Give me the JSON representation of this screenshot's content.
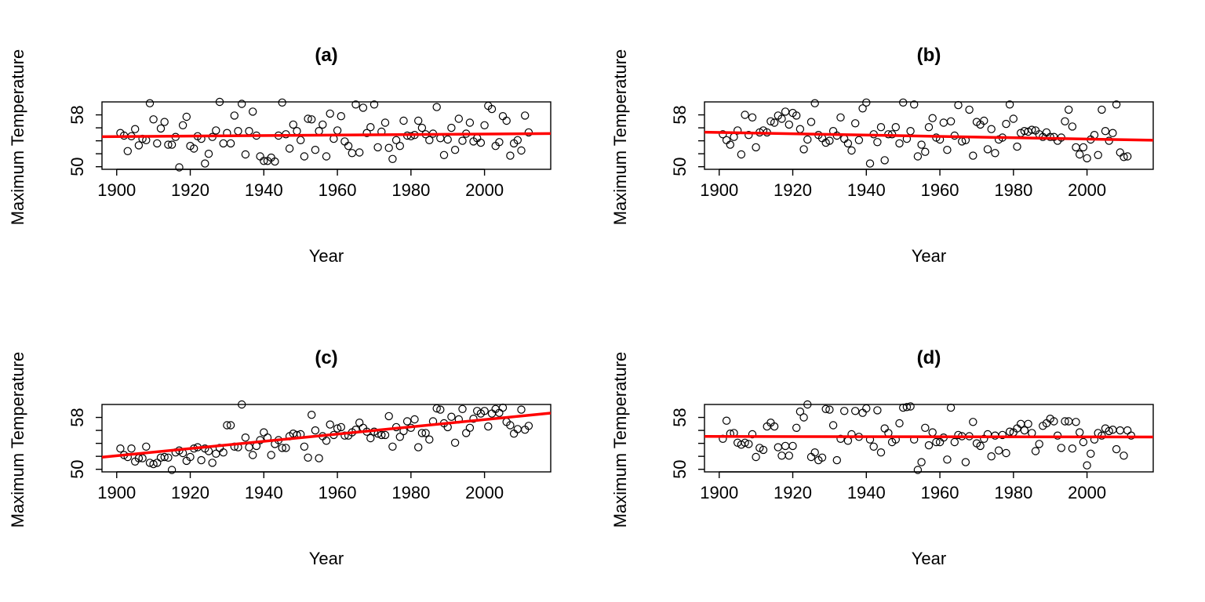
{
  "figure": {
    "background": "#ffffff"
  },
  "style": {
    "point_color": "#000000",
    "trend_color": "#ff0000",
    "axis_color": "#000000"
  },
  "chart_data": [
    {
      "type": "scatter",
      "title": "(a)",
      "xlabel": "Year",
      "ylabel": "Maximum Temperature",
      "xlim": [
        1896,
        2018
      ],
      "ylim": [
        49.6,
        60.0
      ],
      "xticks": [
        1900,
        1920,
        1940,
        1960,
        1980,
        2000
      ],
      "yticks": [
        50,
        58
      ],
      "ytick_labels": [
        "50",
        "58"
      ],
      "years_start": 1901,
      "y": [
        55.2,
        54.8,
        52.4,
        54.7,
        55.8,
        53.3,
        54.3,
        54.1,
        59.8,
        57.3,
        53.6,
        55.9,
        56.9,
        53.4,
        53.4,
        54.6,
        49.9,
        56.4,
        57.7,
        53.2,
        52.8,
        54.7,
        54.3,
        50.5,
        52.0,
        54.6,
        55.6,
        60.0,
        53.6,
        55.2,
        53.6,
        57.9,
        55.5,
        59.7,
        51.9,
        55.5,
        58.5,
        54.8,
        51.6,
        50.9,
        50.9,
        51.4,
        50.8,
        54.8,
        59.9,
        55.0,
        52.8,
        56.5,
        55.5,
        54.1,
        51.6,
        57.4,
        57.3,
        52.6,
        55.5,
        56.5,
        51.6,
        58.2,
        54.3,
        55.6,
        57.8,
        53.9,
        53.2,
        52.1,
        59.6,
        52.2,
        59.1,
        55.2,
        56.1,
        59.6,
        53.0,
        55.4,
        56.8,
        52.9,
        51.2,
        54.1,
        53.2,
        57.1,
        54.8,
        54.7,
        54.9,
        57.1,
        56.0,
        55.0,
        54.1,
        55.1,
        59.2,
        54.4,
        51.8,
        54.2,
        56.0,
        52.6,
        57.4,
        54.0,
        55.1,
        56.8,
        53.9,
        54.4,
        53.7,
        56.4,
        59.4,
        58.9,
        53.2,
        53.8,
        57.8,
        57.1,
        51.7,
        53.6,
        54.1,
        52.5,
        57.9,
        55.3
      ],
      "trend": [
        54.65,
        55.09
      ]
    },
    {
      "type": "scatter",
      "title": "(b)",
      "xlabel": "Year",
      "ylabel": "Maximum Temperature",
      "xlim": [
        1896,
        2018
      ],
      "ylim": [
        49.6,
        60.0
      ],
      "xticks": [
        1900,
        1920,
        1940,
        1960,
        1980,
        2000
      ],
      "yticks": [
        50,
        58
      ],
      "ytick_labels": [
        "50",
        "58"
      ],
      "years_start": 1901,
      "y": [
        55.0,
        54.1,
        53.4,
        54.6,
        55.6,
        51.9,
        58.0,
        54.9,
        57.6,
        53.0,
        55.3,
        55.6,
        55.3,
        57.0,
        56.8,
        57.9,
        57.4,
        58.5,
        56.5,
        58.3,
        57.9,
        55.8,
        52.7,
        54.2,
        56.9,
        59.8,
        54.9,
        54.4,
        53.7,
        54.0,
        55.5,
        54.8,
        57.6,
        54.3,
        53.6,
        52.5,
        56.7,
        54.1,
        59.0,
        59.9,
        50.5,
        55.0,
        53.8,
        56.1,
        51.0,
        55.0,
        55.0,
        56.1,
        53.6,
        59.9,
        54.3,
        55.5,
        59.6,
        51.6,
        53.4,
        52.3,
        56.1,
        57.5,
        54.5,
        54.2,
        56.8,
        52.6,
        57.0,
        54.8,
        59.5,
        53.9,
        54.1,
        58.8,
        51.7,
        56.9,
        56.5,
        57.1,
        52.7,
        55.8,
        52.1,
        54.2,
        54.5,
        56.6,
        59.6,
        57.4,
        53.1,
        55.2,
        55.5,
        55.4,
        55.7,
        55.6,
        55.0,
        54.6,
        55.3,
        54.6,
        54.6,
        54.0,
        54.5,
        57.0,
        58.8,
        56.2,
        53.0,
        51.9,
        53.0,
        51.3,
        54.2,
        54.9,
        51.8,
        58.8,
        55.5,
        54.0,
        55.2,
        59.6,
        52.2,
        51.5,
        51.6
      ],
      "trend": [
        55.28,
        54.14
      ]
    },
    {
      "type": "scatter",
      "title": "(c)",
      "xlabel": "Year",
      "ylabel": "Maximum Temperature",
      "xlim": [
        1896,
        2018
      ],
      "ylim": [
        49.6,
        60.0
      ],
      "xticks": [
        1900,
        1920,
        1940,
        1960,
        1980,
        2000
      ],
      "yticks": [
        50,
        58
      ],
      "ytick_labels": [
        "50",
        "58"
      ],
      "years_start": 1901,
      "y": [
        53.2,
        52.2,
        51.9,
        53.2,
        51.2,
        51.7,
        51.7,
        53.5,
        51.0,
        50.8,
        51.0,
        51.8,
        51.9,
        51.8,
        49.9,
        52.6,
        52.9,
        52.5,
        51.3,
        51.9,
        53.2,
        53.4,
        51.4,
        53.2,
        52.8,
        51.0,
        52.4,
        53.3,
        52.6,
        56.8,
        56.8,
        53.5,
        53.4,
        60.0,
        54.9,
        53.4,
        52.2,
        53.6,
        54.5,
        55.7,
        54.9,
        52.2,
        53.9,
        54.5,
        53.3,
        53.3,
        55.1,
        55.5,
        55.3,
        55.4,
        53.5,
        51.8,
        58.4,
        56.0,
        51.7,
        55.1,
        54.4,
        56.9,
        55.3,
        56.3,
        56.5,
        55.2,
        55.2,
        55.7,
        56.1,
        57.2,
        56.4,
        55.8,
        54.8,
        55.8,
        55.5,
        55.3,
        55.3,
        58.2,
        53.5,
        56.5,
        55.0,
        55.9,
        57.4,
        56.4,
        57.7,
        53.4,
        55.6,
        55.6,
        54.6,
        57.4,
        59.4,
        59.2,
        57.1,
        56.5,
        58.1,
        54.1,
        57.7,
        59.3,
        55.6,
        56.4,
        57.8,
        59.0,
        58.6,
        59.0,
        56.6,
        58.6,
        59.3,
        58.7,
        59.5,
        57.3,
        56.8,
        55.5,
        56.2,
        59.2,
        56.1,
        56.7
      ],
      "trend": [
        52.14,
        58.39
      ]
    },
    {
      "type": "scatter",
      "title": "(d)",
      "xlabel": "Year",
      "ylabel": "Maximum Temperature",
      "xlim": [
        1896,
        2018
      ],
      "ylim": [
        49.6,
        60.0
      ],
      "xticks": [
        1900,
        1920,
        1940,
        1960,
        1980,
        2000
      ],
      "yticks": [
        50,
        58
      ],
      "ytick_labels": [
        "50",
        "58"
      ],
      "years_start": 1901,
      "y": [
        54.7,
        57.5,
        55.5,
        55.6,
        54.1,
        53.8,
        54.1,
        53.9,
        55.4,
        51.9,
        53.3,
        53.0,
        56.6,
        57.2,
        56.6,
        53.4,
        52.1,
        53.6,
        52.1,
        53.6,
        56.4,
        58.9,
        58.0,
        60.0,
        51.9,
        52.6,
        51.4,
        51.8,
        59.3,
        59.2,
        56.8,
        51.4,
        54.7,
        59.0,
        54.4,
        55.4,
        59.0,
        55.0,
        58.7,
        59.4,
        54.6,
        53.5,
        59.1,
        52.6,
        56.3,
        55.6,
        54.2,
        54.6,
        57.1,
        59.5,
        59.6,
        59.7,
        54.6,
        49.9,
        51.1,
        56.4,
        53.7,
        55.7,
        54.2,
        54.2,
        54.9,
        51.5,
        59.5,
        54.2,
        55.3,
        55.1,
        51.1,
        55.1,
        57.3,
        54.0,
        53.6,
        54.7,
        55.4,
        52.0,
        55.2,
        52.9,
        55.3,
        52.5,
        55.8,
        55.7,
        56.3,
        57.0,
        56.0,
        57.0,
        55.6,
        52.8,
        53.9,
        56.7,
        57.1,
        57.8,
        57.4,
        55.2,
        53.3,
        57.4,
        57.4,
        53.2,
        57.3,
        55.7,
        54.2,
        50.6,
        52.4,
        54.6,
        55.6,
        55.2,
        56.3,
        55.9,
        56.1,
        53.1,
        56.0,
        52.1,
        56.0,
        55.2
      ],
      "trend": [
        55.06,
        54.98
      ]
    }
  ]
}
